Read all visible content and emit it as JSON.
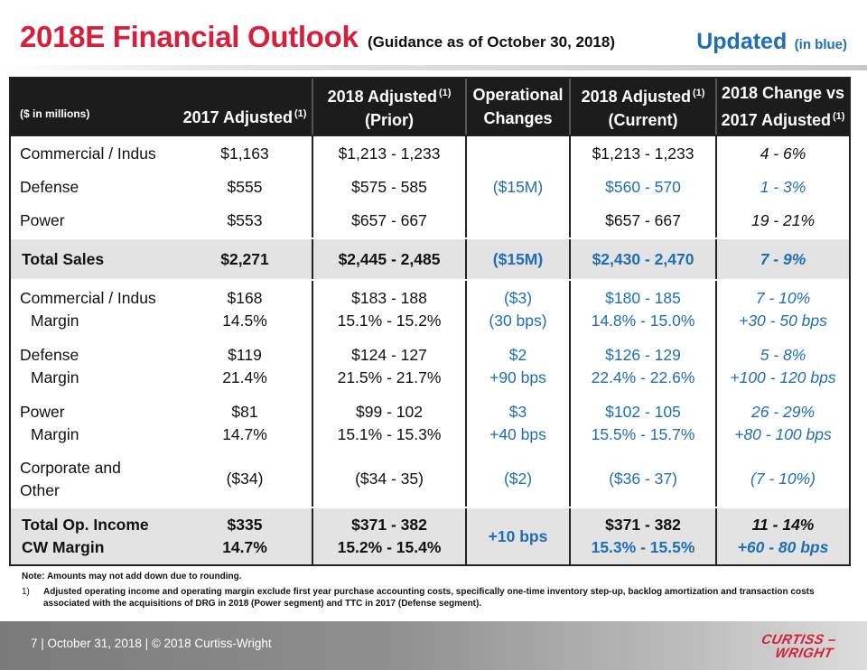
{
  "header": {
    "title": "2018E Financial Outlook",
    "subtitle": "(Guidance as of October 30, 2018)",
    "updated": "Updated",
    "updated_note": "(in blue)"
  },
  "table": {
    "headers": {
      "units": "($ in millions)",
      "col2": "2017 Adjusted",
      "col2_sup": "(1)",
      "col3_l1": "2018 Adjusted",
      "col3_sup": "(1)",
      "col3_l2": "(Prior)",
      "col4_l1": "Operational",
      "col4_l2": "Changes",
      "col5_l1": "2018 Adjusted",
      "col5_sup": "(1)",
      "col5_l2": "(Current)",
      "col6_l1": "2018 Change vs",
      "col6_l2": "2017 Adjusted",
      "col6_sup": "(1)"
    },
    "sales": [
      {
        "label": "Commercial / Indus",
        "y2017": "$1,163",
        "prior": "$1,213 - 1,233",
        "change": "",
        "current": "$1,213 - 1,233",
        "vs2017": "4 - 6%"
      },
      {
        "label": "Defense",
        "y2017": "$555",
        "prior": "$575 - 585",
        "change": "($15M)",
        "current": "$560 - 570",
        "vs2017": "1 - 3%"
      },
      {
        "label": "Power",
        "y2017": "$553",
        "prior": "$657 - 667",
        "change": "",
        "current": "$657 - 667",
        "vs2017": "19 - 21%"
      }
    ],
    "total_sales": {
      "label": "Total Sales",
      "y2017": "$2,271",
      "prior": "$2,445 - 2,485",
      "change": "($15M)",
      "current": "$2,430 - 2,470",
      "vs2017": "7 - 9%"
    },
    "segments": [
      {
        "label": "Commercial / Indus",
        "margin_label": "Margin",
        "y2017": "$168",
        "y2017_m": "14.5%",
        "prior": "$183 - 188",
        "prior_m": "15.1% - 15.2%",
        "change": "($3)",
        "change_m": "(30 bps)",
        "current": "$180 - 185",
        "current_m": "14.8% - 15.0%",
        "vs2017": "7 - 10%",
        "vs2017_m": "+30 - 50 bps"
      },
      {
        "label": "Defense",
        "margin_label": "Margin",
        "y2017": "$119",
        "y2017_m": "21.4%",
        "prior": "$124 - 127",
        "prior_m": "21.5% - 21.7%",
        "change": "$2",
        "change_m": "+90 bps",
        "current": "$126 - 129",
        "current_m": "22.4% - 22.6%",
        "vs2017": "5 - 8%",
        "vs2017_m": "+100 - 120 bps"
      },
      {
        "label": "Power",
        "margin_label": "Margin",
        "y2017": "$81",
        "y2017_m": "14.7%",
        "prior": "$99 - 102",
        "prior_m": "15.1% - 15.3%",
        "change": "$3",
        "change_m": "+40 bps",
        "current": "$102 - 105",
        "current_m": "15.5% - 15.7%",
        "vs2017": "26 - 29%",
        "vs2017_m": "+80 - 100 bps"
      }
    ],
    "corporate": {
      "label_l1": "Corporate and",
      "label_l2": "Other",
      "y2017": "($34)",
      "prior": "($34 - 35)",
      "change": "($2)",
      "current": "($36 - 37)",
      "vs2017": "(7 - 10%)"
    },
    "total_op": {
      "label": "Total Op. Income",
      "margin_label": "CW Margin",
      "y2017": "$335",
      "y2017_m": "14.7%",
      "prior": "$371 - 382",
      "prior_m": "15.2% - 15.4%",
      "change": "+10 bps",
      "current": "$371 - 382",
      "current_m": "15.3% - 15.5%",
      "vs2017": "11 - 14%",
      "vs2017_m": "+60 - 80 bps"
    }
  },
  "notes": {
    "note": "Note: Amounts may not add down due to rounding.",
    "fn1_num": "1)",
    "fn1_text": "Adjusted operating income and operating margin exclude first year purchase accounting costs, specifically one-time inventory step-up, backlog amortization and transaction costs associated with the acquisitions of DRG in 2018 (Power segment) and TTC in 2017 (Defense segment)."
  },
  "footer": {
    "text": "7  | October 31, 2018  |  © 2018 Curtiss-Wright",
    "logo_l1": "CURTISS –",
    "logo_l2": "WRIGHT"
  },
  "colors": {
    "title_red": "#d4203a",
    "updated_blue": "#1f6eb5",
    "header_black": "#1c1c1c"
  }
}
